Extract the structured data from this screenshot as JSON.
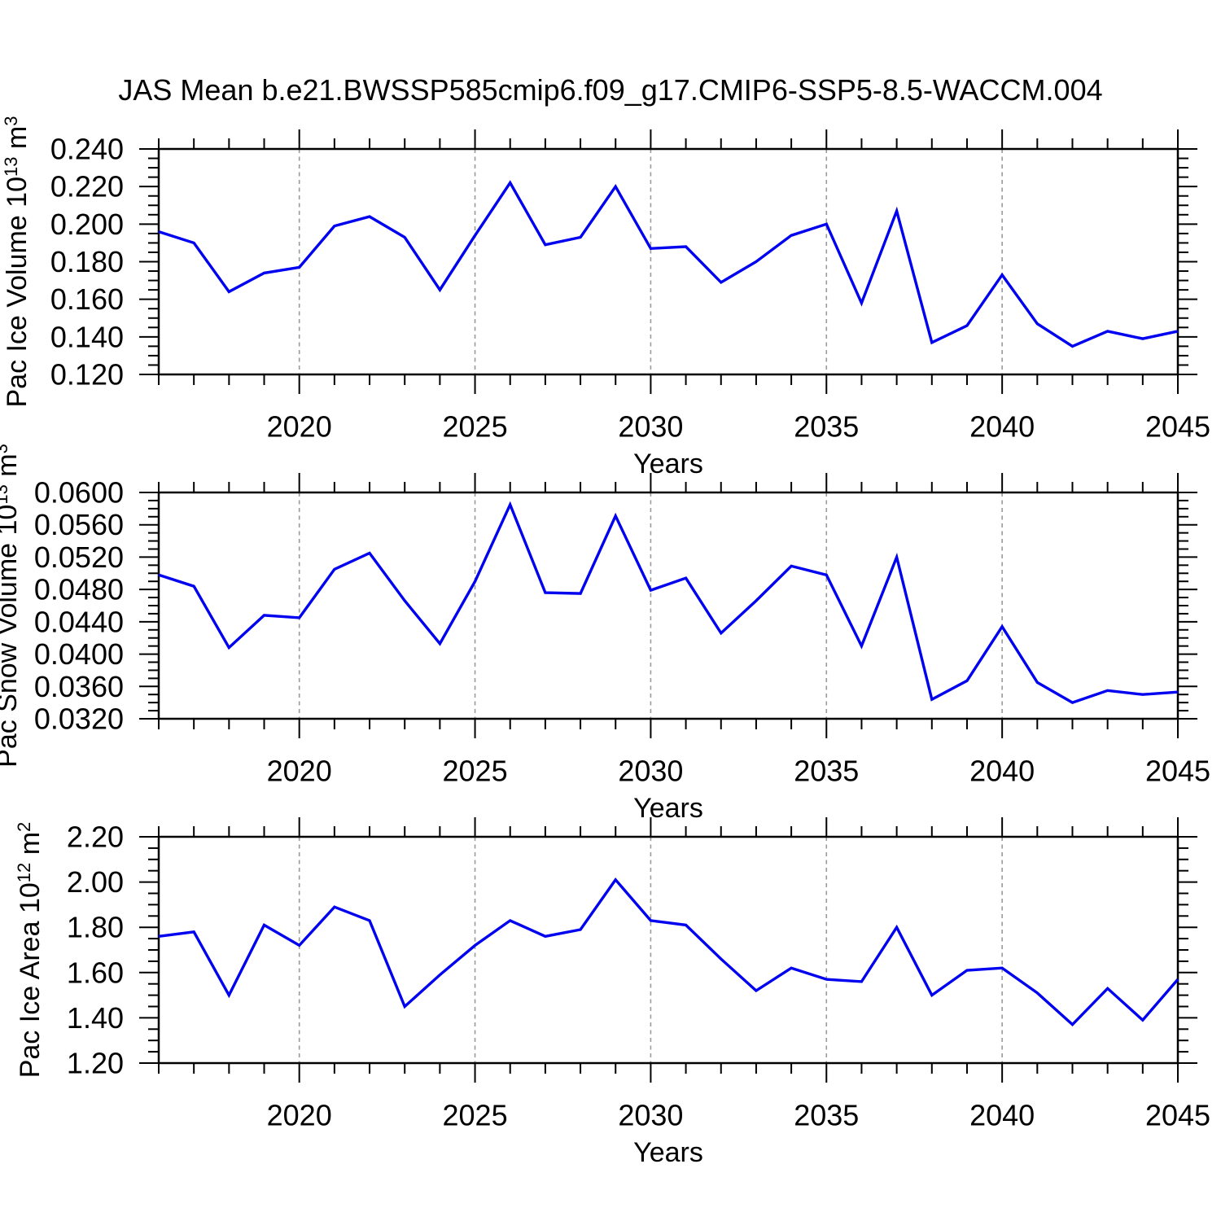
{
  "title": "JAS Mean b.e21.BWSSP585cmip6.f09_g17.CMIP6-SSP5-8.5-WACCM.004",
  "colors": {
    "line": "#0000f0",
    "axis": "#000000",
    "grid": "#9a9a9a",
    "text": "#000000",
    "background": "#ffffff"
  },
  "chart_data": [
    {
      "type": "line",
      "panel_id": "pac-ice-volume",
      "xlabel": "Years",
      "ylabel": "Pac Ice Volume 10^13 m^3",
      "ylabel_parts": [
        {
          "t": "Pac Ice Volume 10"
        },
        {
          "t": "13",
          "sup": true
        },
        {
          "t": " m"
        },
        {
          "t": "3",
          "sup": true
        }
      ],
      "x": [
        2016,
        2017,
        2018,
        2019,
        2020,
        2021,
        2022,
        2023,
        2024,
        2025,
        2026,
        2027,
        2028,
        2029,
        2030,
        2031,
        2032,
        2033,
        2034,
        2035,
        2036,
        2037,
        2038,
        2039,
        2040,
        2041,
        2042,
        2043,
        2044,
        2045
      ],
      "values": [
        0.196,
        0.19,
        0.164,
        0.174,
        0.177,
        0.199,
        0.204,
        0.193,
        0.165,
        0.194,
        0.222,
        0.189,
        0.193,
        0.22,
        0.187,
        0.188,
        0.169,
        0.18,
        0.194,
        0.2,
        0.158,
        0.207,
        0.137,
        0.146,
        0.173,
        0.147,
        0.135,
        0.143,
        0.139,
        0.143
      ],
      "xlim": [
        2016,
        2045
      ],
      "ylim": [
        0.12,
        0.24
      ],
      "ytick_step": 0.02,
      "yminor_step": 0.005,
      "ytick_decimals": 3,
      "xticks": [
        2020,
        2025,
        2030,
        2035,
        2040,
        2045
      ],
      "xminor_step": 1,
      "grid_x": [
        2020,
        2025,
        2030,
        2035,
        2040
      ],
      "legend": "none"
    },
    {
      "type": "line",
      "panel_id": "pac-snow-volume",
      "xlabel": "Years",
      "ylabel": "Pac Snow Volume 10^13 m^3",
      "ylabel_parts": [
        {
          "t": "Pac Snow Volume 10"
        },
        {
          "t": "13",
          "sup": true
        },
        {
          "t": " m"
        },
        {
          "t": "3",
          "sup": true
        }
      ],
      "x": [
        2016,
        2017,
        2018,
        2019,
        2020,
        2021,
        2022,
        2023,
        2024,
        2025,
        2026,
        2027,
        2028,
        2029,
        2030,
        2031,
        2032,
        2033,
        2034,
        2035,
        2036,
        2037,
        2038,
        2039,
        2040,
        2041,
        2042,
        2043,
        2044,
        2045
      ],
      "values": [
        0.0498,
        0.0484,
        0.0408,
        0.0448,
        0.0445,
        0.0505,
        0.0525,
        0.0466,
        0.0413,
        0.049,
        0.0585,
        0.0476,
        0.0475,
        0.0571,
        0.0479,
        0.0494,
        0.0426,
        0.0466,
        0.0509,
        0.0498,
        0.041,
        0.052,
        0.0344,
        0.0367,
        0.0434,
        0.0365,
        0.034,
        0.0355,
        0.035,
        0.0353
      ],
      "xlim": [
        2016,
        2045
      ],
      "ylim": [
        0.032,
        0.06
      ],
      "ytick_step": 0.004,
      "yminor_step": 0.001,
      "ytick_decimals": 4,
      "xticks": [
        2020,
        2025,
        2030,
        2035,
        2040,
        2045
      ],
      "xminor_step": 1,
      "grid_x": [
        2020,
        2025,
        2030,
        2035,
        2040
      ],
      "legend": "none"
    },
    {
      "type": "line",
      "panel_id": "pac-ice-area",
      "xlabel": "Years",
      "ylabel": "Pac Ice Area 10^12 m^2",
      "ylabel_parts": [
        {
          "t": "Pac Ice Area 10"
        },
        {
          "t": "12",
          "sup": true
        },
        {
          "t": " m"
        },
        {
          "t": "2",
          "sup": true
        }
      ],
      "x": [
        2016,
        2017,
        2018,
        2019,
        2020,
        2021,
        2022,
        2023,
        2024,
        2025,
        2026,
        2027,
        2028,
        2029,
        2030,
        2031,
        2032,
        2033,
        2034,
        2035,
        2036,
        2037,
        2038,
        2039,
        2040,
        2041,
        2042,
        2043,
        2044,
        2045
      ],
      "values": [
        1.76,
        1.78,
        1.5,
        1.81,
        1.72,
        1.89,
        1.83,
        1.45,
        1.59,
        1.72,
        1.83,
        1.76,
        1.79,
        2.01,
        1.83,
        1.81,
        1.66,
        1.52,
        1.62,
        1.57,
        1.56,
        1.8,
        1.5,
        1.61,
        1.62,
        1.51,
        1.37,
        1.53,
        1.39,
        1.57
      ],
      "xlim": [
        2016,
        2045
      ],
      "ylim": [
        1.2,
        2.2
      ],
      "ytick_step": 0.2,
      "yminor_step": 0.05,
      "ytick_decimals": 2,
      "xticks": [
        2020,
        2025,
        2030,
        2035,
        2040,
        2045
      ],
      "xminor_step": 1,
      "grid_x": [
        2020,
        2025,
        2030,
        2035,
        2040
      ],
      "legend": "none"
    }
  ]
}
